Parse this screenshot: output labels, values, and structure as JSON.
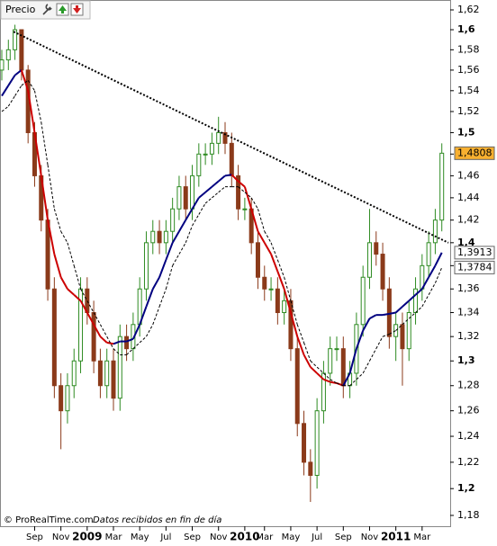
{
  "chart_data": {
    "type": "candlestick",
    "title": "Precio",
    "footer": "© ProRealTime.com",
    "footer_note": "Datos recibidos en fin de día",
    "log_scale": true,
    "xlim": [
      0,
      68
    ],
    "xticks": [
      {
        "value": 5,
        "label": "Sep"
      },
      {
        "value": 9,
        "label": "Nov"
      },
      {
        "value": 13,
        "label": "2009"
      },
      {
        "value": 17,
        "label": "Mar"
      },
      {
        "value": 21,
        "label": "May"
      },
      {
        "value": 25,
        "label": "Jul"
      },
      {
        "value": 29,
        "label": "Sep"
      },
      {
        "value": 33,
        "label": "Nov"
      },
      {
        "value": 37,
        "label": "2010"
      },
      {
        "value": 40,
        "label": "Mar"
      },
      {
        "value": 44,
        "label": "May"
      },
      {
        "value": 48,
        "label": "Jul"
      },
      {
        "value": 52,
        "label": "Sep"
      },
      {
        "value": 56,
        "label": "Nov"
      },
      {
        "value": 60,
        "label": "2011"
      },
      {
        "value": 64,
        "label": "Mar"
      }
    ],
    "ylim": [
      1.18,
      1.62
    ],
    "yticks": [
      {
        "value": 1.18,
        "label": "1,18"
      },
      {
        "value": 1.2,
        "label": "1,2"
      },
      {
        "value": 1.22,
        "label": "1,22"
      },
      {
        "value": 1.24,
        "label": "1,24"
      },
      {
        "value": 1.26,
        "label": "1,26"
      },
      {
        "value": 1.28,
        "label": "1,28"
      },
      {
        "value": 1.3,
        "label": "1,3"
      },
      {
        "value": 1.32,
        "label": "1,32"
      },
      {
        "value": 1.34,
        "label": "1,34"
      },
      {
        "value": 1.36,
        "label": "1,36"
      },
      {
        "value": 1.38,
        "label": "1,38"
      },
      {
        "value": 1.4,
        "label": "1,4"
      },
      {
        "value": 1.42,
        "label": "1,42"
      },
      {
        "value": 1.44,
        "label": "1,44"
      },
      {
        "value": 1.46,
        "label": "1,46"
      },
      {
        "value": 1.48,
        "label": "1,48"
      },
      {
        "value": 1.5,
        "label": "1,5"
      },
      {
        "value": 1.52,
        "label": "1,52"
      },
      {
        "value": 1.54,
        "label": "1,54"
      },
      {
        "value": 1.56,
        "label": "1,56"
      },
      {
        "value": 1.58,
        "label": "1,58"
      },
      {
        "value": 1.6,
        "label": "1,6"
      },
      {
        "value": 1.62,
        "label": "1,62"
      }
    ],
    "up_color": "#2e8b22",
    "down_color": "#8b3a1a",
    "open": [
      1.56,
      1.57,
      1.58,
      1.6,
      1.56,
      1.5,
      1.46,
      1.42,
      1.36,
      1.28,
      1.26,
      1.28,
      1.3,
      1.36,
      1.34,
      1.3,
      1.28,
      1.3,
      1.27,
      1.32,
      1.31,
      1.33,
      1.36,
      1.4,
      1.41,
      1.4,
      1.41,
      1.43,
      1.45,
      1.43,
      1.46,
      1.48,
      1.48,
      1.49,
      1.5,
      1.49,
      1.46,
      1.43,
      1.43,
      1.4,
      1.37,
      1.36,
      1.36,
      1.34,
      1.35,
      1.31,
      1.25,
      1.22,
      1.21,
      1.26,
      1.29,
      1.31,
      1.31,
      1.28,
      1.29,
      1.33,
      1.37,
      1.4,
      1.39,
      1.36,
      1.32,
      1.33,
      1.31,
      1.34,
      1.36,
      1.38,
      1.4,
      1.42
    ],
    "high": [
      1.58,
      1.59,
      1.605,
      1.6,
      1.565,
      1.51,
      1.47,
      1.43,
      1.37,
      1.29,
      1.29,
      1.31,
      1.37,
      1.37,
      1.35,
      1.31,
      1.31,
      1.31,
      1.33,
      1.33,
      1.34,
      1.37,
      1.41,
      1.42,
      1.42,
      1.42,
      1.44,
      1.46,
      1.46,
      1.47,
      1.49,
      1.49,
      1.5,
      1.515,
      1.51,
      1.5,
      1.47,
      1.44,
      1.44,
      1.41,
      1.38,
      1.37,
      1.37,
      1.36,
      1.36,
      1.32,
      1.26,
      1.23,
      1.27,
      1.3,
      1.32,
      1.32,
      1.32,
      1.3,
      1.34,
      1.38,
      1.43,
      1.41,
      1.4,
      1.37,
      1.34,
      1.34,
      1.35,
      1.37,
      1.39,
      1.41,
      1.43,
      1.49
    ],
    "low": [
      1.55,
      1.56,
      1.57,
      1.55,
      1.49,
      1.45,
      1.41,
      1.35,
      1.27,
      1.23,
      1.25,
      1.27,
      1.29,
      1.33,
      1.29,
      1.27,
      1.27,
      1.26,
      1.26,
      1.3,
      1.3,
      1.32,
      1.35,
      1.39,
      1.39,
      1.39,
      1.4,
      1.42,
      1.42,
      1.42,
      1.45,
      1.47,
      1.47,
      1.48,
      1.48,
      1.45,
      1.42,
      1.42,
      1.39,
      1.36,
      1.35,
      1.35,
      1.33,
      1.33,
      1.3,
      1.24,
      1.21,
      1.19,
      1.2,
      1.25,
      1.28,
      1.3,
      1.27,
      1.27,
      1.28,
      1.32,
      1.36,
      1.38,
      1.35,
      1.31,
      1.3,
      1.28,
      1.3,
      1.33,
      1.35,
      1.37,
      1.39,
      1.41
    ],
    "close": [
      1.57,
      1.58,
      1.6,
      1.56,
      1.5,
      1.46,
      1.42,
      1.36,
      1.28,
      1.26,
      1.28,
      1.3,
      1.36,
      1.34,
      1.3,
      1.28,
      1.3,
      1.27,
      1.32,
      1.31,
      1.33,
      1.36,
      1.4,
      1.41,
      1.4,
      1.41,
      1.43,
      1.45,
      1.43,
      1.46,
      1.48,
      1.48,
      1.49,
      1.5,
      1.49,
      1.46,
      1.43,
      1.43,
      1.4,
      1.37,
      1.36,
      1.36,
      1.34,
      1.35,
      1.31,
      1.25,
      1.22,
      1.21,
      1.26,
      1.29,
      1.31,
      1.31,
      1.28,
      1.29,
      1.33,
      1.37,
      1.4,
      1.39,
      1.36,
      1.32,
      1.33,
      1.31,
      1.34,
      1.36,
      1.38,
      1.4,
      1.42,
      1.4808
    ],
    "close_label": "1,4808",
    "close_label_color": "#f8b030",
    "averages": [
      {
        "rising_color": "#000080",
        "falling_color": "#cc0000",
        "dashed": false,
        "last_label": "1,3913",
        "values": [
          1.535,
          1.545,
          1.555,
          1.56,
          1.54,
          1.5,
          1.46,
          1.42,
          1.39,
          1.37,
          1.36,
          1.355,
          1.35,
          1.34,
          1.33,
          1.32,
          1.315,
          1.314,
          1.316,
          1.316,
          1.318,
          1.33,
          1.345,
          1.36,
          1.37,
          1.385,
          1.4,
          1.41,
          1.42,
          1.43,
          1.44,
          1.445,
          1.45,
          1.455,
          1.46,
          1.461,
          1.455,
          1.45,
          1.43,
          1.41,
          1.4,
          1.39,
          1.375,
          1.36,
          1.34,
          1.32,
          1.305,
          1.295,
          1.29,
          1.285,
          1.283,
          1.282,
          1.28,
          1.29,
          1.31,
          1.325,
          1.335,
          1.338,
          1.338,
          1.339,
          1.34,
          1.345,
          1.35,
          1.355,
          1.36,
          1.37,
          1.38,
          1.3913
        ]
      },
      {
        "rising_color": "#000000",
        "falling_color": "#000000",
        "dashed": true,
        "last_label": "1,3784",
        "values": [
          1.52,
          1.525,
          1.535,
          1.545,
          1.55,
          1.54,
          1.51,
          1.47,
          1.43,
          1.41,
          1.4,
          1.38,
          1.36,
          1.35,
          1.34,
          1.33,
          1.32,
          1.31,
          1.305,
          1.305,
          1.31,
          1.315,
          1.32,
          1.33,
          1.345,
          1.36,
          1.38,
          1.39,
          1.4,
          1.415,
          1.425,
          1.435,
          1.44,
          1.445,
          1.45,
          1.45,
          1.45,
          1.445,
          1.44,
          1.43,
          1.41,
          1.4,
          1.385,
          1.37,
          1.35,
          1.33,
          1.315,
          1.3,
          1.295,
          1.29,
          1.285,
          1.282,
          1.28,
          1.28,
          1.285,
          1.29,
          1.3,
          1.31,
          1.32,
          1.322,
          1.325,
          1.33,
          1.335,
          1.34,
          1.345,
          1.355,
          1.365,
          1.3784
        ]
      }
    ],
    "trendline": {
      "x": [
        1.8,
        68
      ],
      "values": [
        1.598,
        1.4
      ],
      "color": "#000000"
    }
  }
}
